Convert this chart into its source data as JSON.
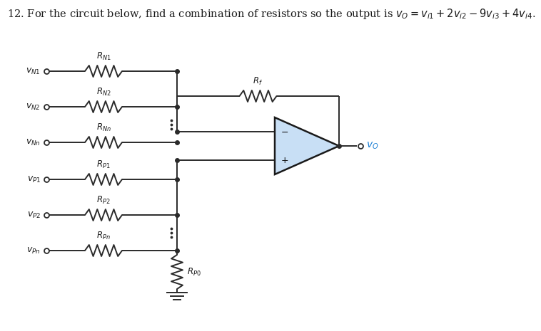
{
  "bg_color": "#ffffff",
  "wire_color": "#2a2a2a",
  "resistor_color": "#2a2a2a",
  "opamp_fill": "#c8dff5",
  "opamp_edge": "#1a1a1a",
  "vo_color": "#1a7fd4",
  "dot_color": "#2a2a2a",
  "title_fontsize": 10.5,
  "label_fontsize": 9,
  "small_fontsize": 8.5,
  "vN_labels": [
    "$v_{N1}$",
    "$v_{N2}$",
    "$v_{Nn}$"
  ],
  "vP_labels": [
    "$v_{P1}$",
    "$v_{P2}$",
    "$v_{Pn}$"
  ],
  "RN_labels": [
    "$R_{N1}$",
    "$R_{N2}$",
    "$R_{Nn}$"
  ],
  "RP_labels": [
    "$R_{P1}$",
    "$R_{P2}$",
    "$R_{Pn}$"
  ],
  "Rf_label": "$R_f$",
  "RP0_label": "$R_{P0}$",
  "vo_label": "$v_O$",
  "figw": 7.58,
  "figh": 4.65,
  "dpi": 100
}
